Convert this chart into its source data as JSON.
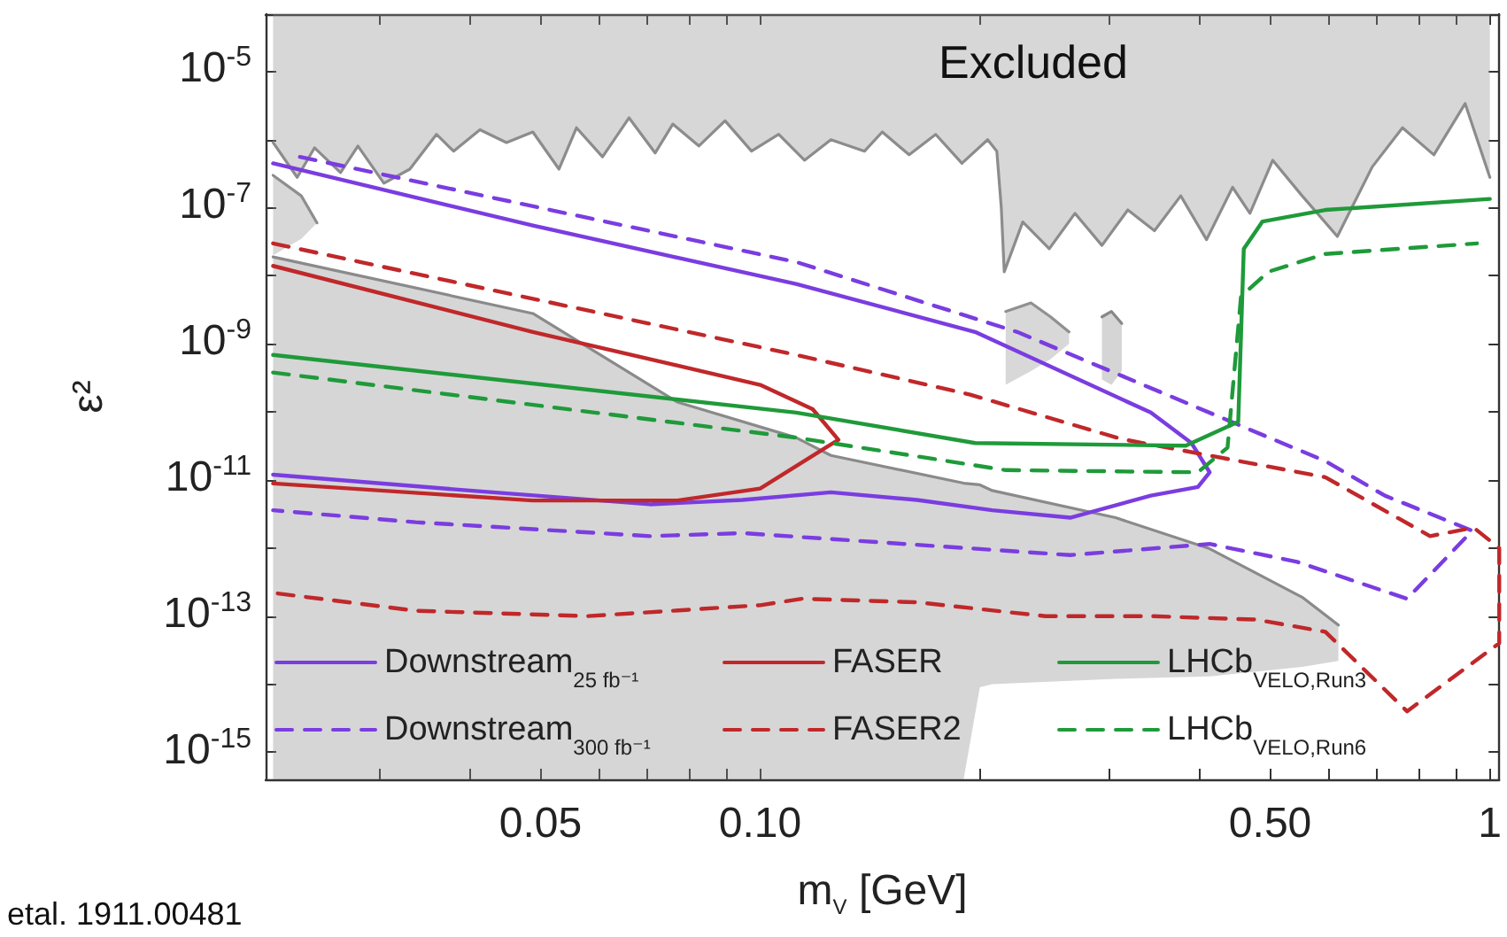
{
  "chart_data": {
    "type": "line",
    "xlabel": "m$_{V}$ [GeV]",
    "ylabel": "ε²",
    "log": "xy",
    "legend": "bottom",
    "marker": "none",
    "xlim": [
      0.021,
      1.03
    ],
    "xticks": [
      {
        "value": 0.03,
        "label": null
      },
      {
        "value": 0.04,
        "label": null
      },
      {
        "value": 0.05,
        "label": "0.05"
      },
      {
        "value": 0.06,
        "label": null
      },
      {
        "value": 0.07,
        "label": null
      },
      {
        "value": 0.08,
        "label": null
      },
      {
        "value": 0.09,
        "label": null
      },
      {
        "value": 0.1,
        "label": "0.10"
      },
      {
        "value": 0.2,
        "label": null
      },
      {
        "value": 0.3,
        "label": null
      },
      {
        "value": 0.4,
        "label": null
      },
      {
        "value": 0.5,
        "label": "0.50"
      },
      {
        "value": 0.6,
        "label": null
      },
      {
        "value": 0.7,
        "label": null
      },
      {
        "value": 0.8,
        "label": null
      },
      {
        "value": 0.9,
        "label": null
      },
      {
        "value": 1,
        "label": "1"
      }
    ],
    "ylim": [
      4e-16,
      7e-05
    ],
    "yticks": [
      {
        "value": 1e-15,
        "label": "10$^{-15}$"
      },
      {
        "value": 1e-14,
        "label": null
      },
      {
        "value": 1e-13,
        "label": "10$^{-13}$"
      },
      {
        "value": 1e-12,
        "label": null
      },
      {
        "value": 1e-11,
        "label": "10$^{-11}$"
      },
      {
        "value": 1e-10,
        "label": null
      },
      {
        "value": 1e-09,
        "label": "10$^{-9}$"
      },
      {
        "value": 1e-08,
        "label": null
      },
      {
        "value": 1e-07,
        "label": "10$^{-7}$"
      },
      {
        "value": 1e-06,
        "label": null
      },
      {
        "value": 1e-05,
        "label": "10$^{-5}$"
      }
    ],
    "annotations": [
      "Excluded",
      "etal. 1911.00481"
    ],
    "series": [
      {
        "color": "#8c8c8c",
        "x": [
          0.0215,
          0.0232,
          0.0245,
          0.0266,
          0.0281,
          0.0305,
          0.0331,
          0.036,
          0.038,
          0.0413,
          0.0449,
          0.0488,
          0.053,
          0.056,
          0.0608,
          0.0661,
          0.0718,
          0.0759,
          0.0824,
          0.0895,
          0.0973,
          0.106,
          0.115,
          0.125,
          0.139,
          0.147,
          0.16,
          0.174,
          0.189,
          0.205,
          0.211,
          0.214,
          0.216,
          0.229,
          0.249,
          0.27,
          0.294,
          0.319,
          0.347,
          0.377,
          0.409,
          0.444,
          0.469,
          0.504,
          0.553,
          0.618,
          0.69,
          0.759,
          0.838,
          0.925,
          1.0
        ],
        "values": [
          9.1e-07,
          2.8e-07,
          7.6e-07,
          3.3e-07,
          8.1e-07,
          2.3e-07,
          3.7e-07,
          1.2e-06,
          6.8e-07,
          1.4e-06,
          9.1e-07,
          1.3e-06,
          3.7e-07,
          1.5e-06,
          5.6e-07,
          2.1e-06,
          6.4e-07,
          1.7e-06,
          8.1e-07,
          1.9e-06,
          6.8e-07,
          1.2e-06,
          5e-07,
          1e-06,
          6.8e-07,
          1.3e-06,
          6e-07,
          1.2e-06,
          4.5e-07,
          1e-06,
          6.8e-07,
          1e-07,
          1.15e-08,
          6.2e-08,
          2.5e-08,
          8.3e-08,
          2.8e-08,
          9.3e-08,
          4.6e-08,
          1.5e-07,
          3.4e-08,
          2e-07,
          8.3e-08,
          5e-07,
          1.5e-07,
          3.8e-08,
          4e-07,
          1.5e-06,
          6e-07,
          3.4e-06,
          2.8e-07
        ],
        "lower": [
          9.1e-07,
          2.8e-07,
          7.6e-07,
          3.3e-07,
          8.1e-07,
          2.3e-07,
          3.7e-07,
          1.2e-06,
          6.8e-07,
          1.4e-06,
          9.1e-07,
          1.3e-06,
          3.7e-07,
          1.5e-06,
          5.6e-07,
          2.1e-06,
          6.4e-07,
          1.7e-06,
          8.1e-07,
          1.9e-06,
          6.8e-07,
          1.2e-06,
          5e-07,
          1e-06,
          6.8e-07,
          1.3e-06,
          6e-07,
          1.2e-06,
          4.5e-07,
          1e-06,
          6.8e-07,
          1e-07,
          1.15e-08,
          6.2e-08,
          2.5e-08,
          8.3e-08,
          2.8e-08,
          9.3e-08,
          4.6e-08,
          1.5e-07,
          3.4e-08,
          2e-07,
          8.3e-08,
          5e-07,
          1.5e-07,
          3.8e-08,
          4e-07,
          1.5e-06,
          6e-07,
          3.4e-06,
          2.8e-07
        ],
        "upper": [
          7e-05,
          7e-05,
          7e-05,
          7e-05,
          7e-05,
          7e-05,
          7e-05,
          7e-05,
          7e-05,
          7e-05,
          7e-05,
          7e-05,
          7e-05,
          7e-05,
          7e-05,
          7e-05,
          7e-05,
          7e-05,
          7e-05,
          7e-05,
          7e-05,
          7e-05,
          7e-05,
          7e-05,
          7e-05,
          7e-05,
          7e-05,
          7e-05,
          7e-05,
          7e-05,
          7e-05,
          7e-05,
          7e-05,
          7e-05,
          7e-05,
          7e-05,
          7e-05,
          7e-05,
          7e-05,
          7e-05,
          7e-05,
          7e-05,
          7e-05,
          7e-05,
          7e-05,
          7e-05,
          7e-05,
          7e-05,
          7e-05,
          7e-05,
          7e-05
        ]
      },
      {
        "color": "#8a8a8a",
        "x": [
          0.0215,
          0.0488,
          0.077,
          0.112,
          0.125,
          0.19,
          0.2,
          0.208,
          0.307,
          0.413,
          0.553,
          0.62
        ],
        "values": [
          1.9e-08,
          2.8e-09,
          1.4e-10,
          4.2e-11,
          2.3e-11,
          9e-12,
          8.5e-12,
          7e-12,
          2.8e-12,
          9.8e-13,
          1.9e-13,
          7.4e-14
        ],
        "lower": [
          4e-16,
          4e-16,
          4e-16,
          4e-16,
          4e-16,
          4e-16,
          9e-15,
          1e-14,
          1.2e-14,
          1.3e-14,
          1.8e-14,
          2.2e-14
        ],
        "upper": [
          1.9e-08,
          2.8e-09,
          1.4e-10,
          4.2e-11,
          2.3e-11,
          9e-12,
          8.5e-12,
          7e-12,
          2.8e-12,
          9.8e-13,
          1.9e-13,
          7.4e-14
        ]
      },
      {
        "color": "#8e8e8e",
        "x": [
          0.0215,
          0.0235,
          0.0247
        ],
        "values": [
          3e-07,
          1.5e-07,
          6e-08
        ],
        "lower": [
          2e-08,
          3.5e-08,
          6e-08
        ],
        "upper": [
          3e-07,
          1.5e-07,
          6e-08
        ]
      },
      {
        "color": "#909090",
        "x": [
          0.217,
          0.235,
          0.25,
          0.265
        ],
        "values": [
          3e-09,
          4e-09,
          2.5e-09,
          1.5e-09
        ],
        "lower": [
          2.5e-10,
          4e-10,
          6e-10,
          1e-09
        ],
        "upper": [
          3e-09,
          4e-09,
          2.5e-09,
          1.5e-09
        ]
      },
      {
        "color": "#888888",
        "x": [
          0.294,
          0.303,
          0.313
        ],
        "values": [
          2.5e-09,
          3e-09,
          2e-09
        ],
        "lower": [
          3e-10,
          2.5e-10,
          4e-10
        ],
        "upper": [
          2.5e-09,
          3e-09,
          2e-09
        ]
      },
      {
        "name": "Downstream$_{25 fb⁻¹}$",
        "color": "#7a3de0",
        "x": [
          0.0215,
          0.0488,
          0.112,
          0.197,
          0.343,
          0.39,
          0.413,
          0.398,
          0.343,
          0.266,
          0.208,
          0.164,
          0.125,
          0.0945,
          0.0706,
          0.0407,
          0.0215
        ],
        "values": [
          4.5e-07,
          5.5e-08,
          7.6e-09,
          1.5e-09,
          9.8e-11,
          3.5e-11,
          1.3e-11,
          7.9e-12,
          5.9e-12,
          2.8e-12,
          3.6e-12,
          5.1e-12,
          6.6e-12,
          5.1e-12,
          4.4e-12,
          6.9e-12,
          1.2e-11
        ]
      },
      {
        "name": "Downstream$_{300 fb⁻¹}$",
        "color": "#7a3de0",
        "line_style": "dashed",
        "x": [
          0.0234,
          0.112,
          0.225,
          0.452,
          0.595,
          0.718,
          0.946,
          0.77,
          0.544,
          0.413,
          0.266,
          0.0946,
          0.0706,
          0.0337,
          0.0215
        ],
        "values": [
          5.6e-07,
          1.6e-08,
          1.5e-09,
          6.5e-11,
          1.9e-11,
          5.9e-12,
          1.8e-12,
          1.8e-13,
          6.3e-13,
          1.15e-12,
          7.9e-13,
          1.66e-12,
          1.5e-12,
          2.4e-12,
          3.6e-12
        ]
      },
      {
        "name": "FASER",
        "color": "#c0282a",
        "x": [
          0.0215,
          0.0488,
          0.1,
          0.118,
          0.128,
          0.123,
          0.1,
          0.077,
          0.0488,
          0.0215
        ],
        "values": [
          1.4e-08,
          1.5e-09,
          2.5e-10,
          1.1e-10,
          3.9e-11,
          3e-11,
          7.5e-12,
          5e-12,
          5e-12,
          8.9e-12
        ]
      },
      {
        "name": "FASER2",
        "color": "#c0282a",
        "line_style": "dashed",
        "x": [
          0.0215,
          0.112,
          0.194,
          0.313,
          0.595,
          0.828,
          0.95,
          1.03,
          1.03,
          0.77,
          0.595,
          0.478,
          0.343,
          0.246,
          0.164,
          0.114,
          0.1,
          0.058,
          0.0337,
          0.0215
        ],
        "values": [
          3e-08,
          6.9e-10,
          1.8e-10,
          4e-11,
          1.1e-11,
          1.5e-12,
          2e-12,
          1e-12,
          4e-14,
          4e-15,
          5.9e-14,
          8.9e-14,
          1e-13,
          1e-13,
          1.6e-13,
          1.8e-13,
          1.45e-13,
          1e-13,
          1.2e-13,
          2.2e-13
        ]
      },
      {
        "name": "LHCb$_{VELO,Run3}$",
        "color": "#1f9a3a",
        "x": [
          0.0215,
          0.112,
          0.197,
          0.383,
          0.452,
          0.46,
          0.488,
          0.595,
          1.0
        ],
        "values": [
          6.9e-10,
          9.8e-11,
          3.5e-11,
          3.2e-11,
          7.2e-11,
          2.5e-08,
          6.3e-08,
          9.3e-08,
          1.35e-07
        ]
      },
      {
        "name": "LHCb$_{VELO,Run6}$",
        "color": "#1f9a3a",
        "line_style": "dashed",
        "x": [
          0.0215,
          0.112,
          0.217,
          0.398,
          0.437,
          0.456,
          0.497,
          0.595,
          0.96
        ],
        "values": [
          3.8e-10,
          4.2e-11,
          1.4e-11,
          1.3e-11,
          3e-11,
          5e-09,
          1.15e-08,
          2.1e-08,
          3e-08
        ]
      }
    ]
  }
}
